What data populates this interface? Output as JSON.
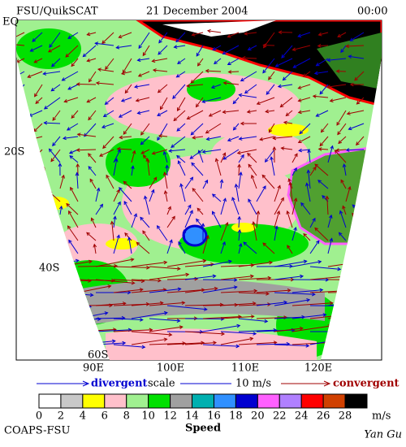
{
  "header": {
    "left": "FSU/QuikSCAT",
    "center": "21 December 2004",
    "right": "00:00"
  },
  "axes": {
    "lat_labels": [
      "EQ",
      "20S",
      "40S",
      "60S"
    ],
    "lon_labels": [
      "90E",
      "100E",
      "110E",
      "120E"
    ]
  },
  "legend": {
    "divergent": "divergent",
    "scale": "scale",
    "scale_value": "10 m/s",
    "convergent": "convergent"
  },
  "colorbar": {
    "ticks": [
      0,
      2,
      4,
      6,
      8,
      10,
      12,
      14,
      16,
      18,
      20,
      22,
      24,
      26,
      28
    ],
    "colors": [
      "#ffffff",
      "#c8c8c8",
      "#ffff00",
      "#ffc0cb",
      "#a0f090",
      "#00e000",
      "#a0a0a0",
      "#00b0b0",
      "#3090ff",
      "#0000d0",
      "#ff60ff",
      "#b080ff",
      "#ff0000",
      "#d04000",
      "#000000"
    ],
    "unit": "m/s",
    "label": "Speed"
  },
  "footer": {
    "left": "COAPS-FSU",
    "right": "Yan Gu"
  }
}
